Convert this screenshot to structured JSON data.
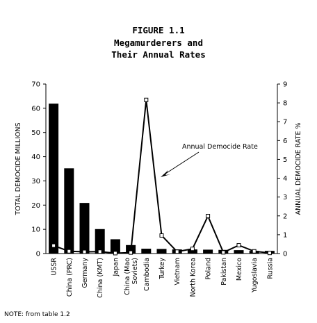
{
  "chart_data": {
    "type": "bar",
    "title": "FIGURE 1.1",
    "subtitle": [
      "Megamurderers and",
      "Their Annual Rates"
    ],
    "categories": [
      "USSR",
      "China (PRC)",
      "Germany",
      "China (KMT)",
      "Japan",
      "China (Mao Soviets)",
      "Cambodia",
      "Turkey",
      "Vietnam",
      "North Korea",
      "Poland",
      "Pakistan",
      "Mexico",
      "Yugoslavia",
      "Russia"
    ],
    "category_labels": [
      [
        "USSR"
      ],
      [
        "China (PRC)"
      ],
      [
        "Germany"
      ],
      [
        "China (KMT)"
      ],
      [
        "Japan"
      ],
      [
        "China (Mao",
        "Soviets)"
      ],
      [
        "Cambodia"
      ],
      [
        "Turkey"
      ],
      [
        "Vietnam"
      ],
      [
        "North Korea"
      ],
      [
        "Poland"
      ],
      [
        "Pakistan"
      ],
      [
        "Mexico"
      ],
      [
        "Yugoslavia"
      ],
      [
        "Russia"
      ]
    ],
    "series": [
      {
        "name": "Total Democide",
        "axis": "left",
        "type": "bar",
        "values": [
          61.9,
          35.2,
          20.9,
          10.1,
          5.9,
          3.5,
          2.0,
          1.9,
          1.7,
          1.7,
          1.6,
          1.5,
          1.4,
          1.1,
          1.1
        ]
      },
      {
        "name": "Annual Democide Rate",
        "axis": "right",
        "type": "line",
        "values": [
          0.42,
          0.12,
          0.09,
          0.1,
          0.02,
          0.05,
          8.16,
          0.96,
          0.1,
          0.25,
          1.99,
          0.06,
          0.44,
          0.12,
          0.03
        ]
      }
    ],
    "ylabel": "TOTAL DEMOCIDE MILLIONS",
    "ylim": [
      0,
      70
    ],
    "yticks": [
      0,
      10,
      20,
      30,
      40,
      50,
      60,
      70
    ],
    "y2label": "ANNUAL DEMOCIDE RATE %",
    "y2lim": [
      0,
      9
    ],
    "y2ticks": [
      0,
      1,
      2,
      3,
      4,
      5,
      6,
      7,
      8,
      9
    ],
    "annotation": "Annual Democide Rate",
    "note": "NOTE: from table 1.2",
    "grid": false
  }
}
